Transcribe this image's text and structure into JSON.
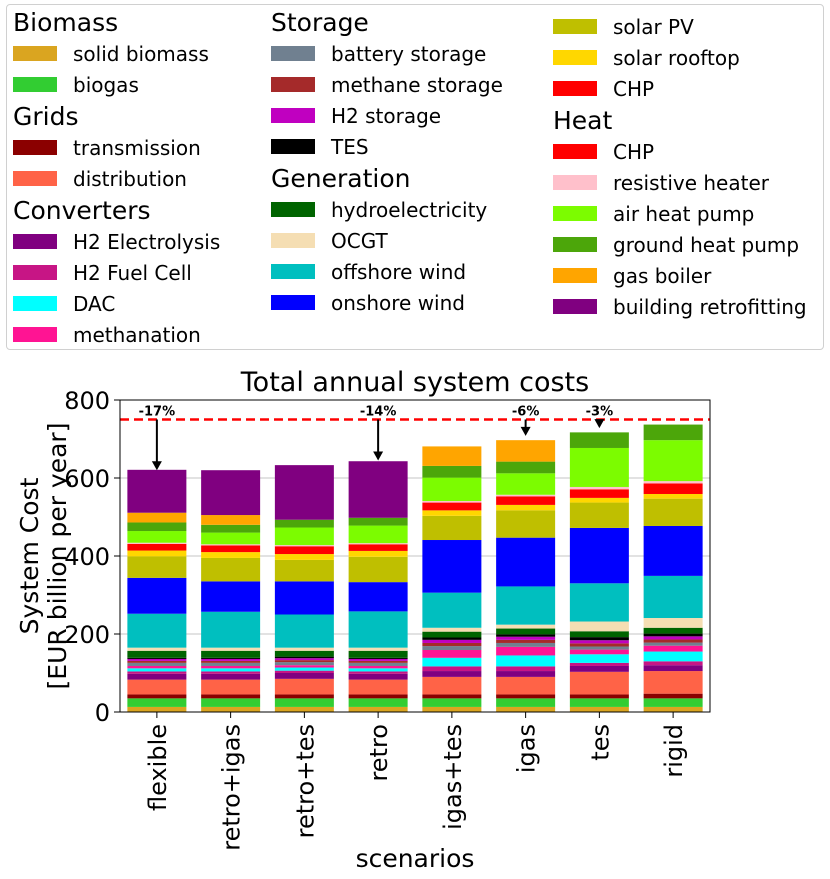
{
  "legend": {
    "columns": [
      [
        {
          "header": "Biomass",
          "items": [
            {
              "label": "solid biomass",
              "color": "#DAA520"
            },
            {
              "label": "biogas",
              "color": "#32CD32"
            }
          ]
        },
        {
          "header": "Grids",
          "items": [
            {
              "label": "transmission",
              "color": "#8B0000"
            },
            {
              "label": "distribution",
              "color": "#FF6347"
            }
          ]
        },
        {
          "header": "Converters",
          "items": [
            {
              "label": "H2 Electrolysis",
              "color": "#800080"
            },
            {
              "label": "H2 Fuel Cell",
              "color": "#C71585"
            },
            {
              "label": "DAC",
              "color": "#00FFFF"
            },
            {
              "label": "methanation",
              "color": "#FF1493"
            }
          ]
        }
      ],
      [
        {
          "header": "Storage",
          "items": [
            {
              "label": "battery storage",
              "color": "#708090"
            },
            {
              "label": "methane storage",
              "color": "#A52A2A"
            },
            {
              "label": "H2 storage",
              "color": "#C000C0"
            },
            {
              "label": "TES",
              "color": "#000000"
            }
          ]
        },
        {
          "header": "Generation",
          "items": [
            {
              "label": "hydroelectricity",
              "color": "#006400"
            },
            {
              "label": "OCGT",
              "color": "#F5DEB3"
            },
            {
              "label": "offshore wind",
              "color": "#00BFBF"
            },
            {
              "label": "onshore wind",
              "color": "#0000FF"
            }
          ]
        }
      ],
      [
        {
          "header": "",
          "items": [
            {
              "label": "solar PV",
              "color": "#BFBF00"
            },
            {
              "label": "solar rooftop",
              "color": "#FFD700"
            },
            {
              "label": "CHP",
              "color": "#FF0000"
            }
          ]
        },
        {
          "header": "Heat",
          "items": [
            {
              "label": "CHP",
              "color": "#FF0000"
            },
            {
              "label": "resistive heater",
              "color": "#FFC0CB"
            },
            {
              "label": "air heat pump",
              "color": "#7CFC00"
            },
            {
              "label": "ground heat pump",
              "color": "#4CA60A"
            },
            {
              "label": "gas boiler",
              "color": "#FFA500"
            },
            {
              "label": "building retrofitting",
              "color": "#800080"
            }
          ]
        }
      ]
    ]
  },
  "chart_data": {
    "type": "bar",
    "stacked": true,
    "title": "Total annual system costs",
    "xlabel": "scenarios",
    "ylabel_lines": [
      "System Cost",
      "[EUR billion per year]"
    ],
    "ylim": [
      0,
      800
    ],
    "yticks": [
      0,
      200,
      400,
      600,
      800
    ],
    "grid": "horizontal",
    "categories": [
      "flexible",
      "retro+igas",
      "retro+tes",
      "retro",
      "igas+tes",
      "igas",
      "tes",
      "rigid"
    ],
    "reference_line": {
      "value": 750,
      "style": "dashed",
      "color": "#FF0000"
    },
    "annotations": [
      {
        "category": "flexible",
        "text": "-17%",
        "from": 750,
        "to": 620
      },
      {
        "category": "retro",
        "text": "-14%",
        "from": 750,
        "to": 645
      },
      {
        "category": "igas",
        "text": "-6%",
        "from": 750,
        "to": 708
      },
      {
        "category": "tes",
        "text": "-3%",
        "from": 750,
        "to": 728
      }
    ],
    "series": [
      {
        "name": "solid biomass",
        "color": "#DAA520",
        "values": [
          13,
          13,
          13,
          13,
          13,
          13,
          13,
          13
        ]
      },
      {
        "name": "biogas",
        "color": "#32CD32",
        "values": [
          22,
          22,
          22,
          22,
          22,
          22,
          22,
          22
        ]
      },
      {
        "name": "transmission",
        "color": "#8B0000",
        "values": [
          10,
          10,
          10,
          10,
          10,
          10,
          10,
          12
        ]
      },
      {
        "name": "distribution",
        "color": "#FF6347",
        "values": [
          38,
          38,
          40,
          38,
          45,
          45,
          58,
          58
        ]
      },
      {
        "name": "H2 Electrolysis",
        "color": "#800080",
        "values": [
          15,
          15,
          15,
          15,
          15,
          15,
          15,
          15
        ]
      },
      {
        "name": "H2 Fuel Cell",
        "color": "#C71585",
        "values": [
          6,
          6,
          6,
          6,
          12,
          12,
          8,
          10
        ]
      },
      {
        "name": "DAC",
        "color": "#00FFFF",
        "values": [
          8,
          8,
          8,
          8,
          22,
          28,
          22,
          25
        ]
      },
      {
        "name": "methanation",
        "color": "#FF1493",
        "values": [
          6,
          6,
          6,
          6,
          20,
          22,
          12,
          15
        ]
      },
      {
        "name": "battery storage",
        "color": "#708090",
        "values": [
          8,
          8,
          8,
          8,
          10,
          10,
          8,
          8
        ]
      },
      {
        "name": "methane storage",
        "color": "#A52A2A",
        "values": [
          5,
          5,
          5,
          5,
          8,
          8,
          8,
          8
        ]
      },
      {
        "name": "H2 storage",
        "color": "#C000C0",
        "values": [
          5,
          5,
          5,
          5,
          8,
          8,
          8,
          8
        ]
      },
      {
        "name": "TES",
        "color": "#000000",
        "values": [
          3,
          3,
          4,
          3,
          6,
          6,
          8,
          7
        ]
      },
      {
        "name": "hydroelectricity",
        "color": "#006400",
        "values": [
          18,
          18,
          15,
          18,
          15,
          15,
          15,
          15
        ]
      },
      {
        "name": "OCGT",
        "color": "#F5DEB3",
        "values": [
          8,
          8,
          8,
          8,
          10,
          10,
          25,
          25
        ]
      },
      {
        "name": "offshore wind",
        "color": "#00BFBF",
        "values": [
          87,
          92,
          85,
          93,
          90,
          98,
          98,
          108
        ]
      },
      {
        "name": "onshore wind",
        "color": "#0000FF",
        "values": [
          92,
          78,
          85,
          75,
          135,
          125,
          142,
          128
        ]
      },
      {
        "name": "solar PV",
        "color": "#BFBF00",
        "values": [
          55,
          60,
          55,
          65,
          62,
          70,
          65,
          70
        ]
      },
      {
        "name": "solar rooftop",
        "color": "#FFD700",
        "values": [
          15,
          15,
          15,
          15,
          14,
          14,
          12,
          12
        ]
      },
      {
        "name": "CHP",
        "color": "#FF0000",
        "values": [
          17,
          17,
          20,
          17,
          20,
          22,
          22,
          27
        ]
      },
      {
        "name": "resistive heater",
        "color": "#FFC0CB",
        "values": [
          3,
          3,
          3,
          3,
          4,
          4,
          6,
          6
        ]
      },
      {
        "name": "air heat pump",
        "color": "#7CFC00",
        "values": [
          30,
          30,
          45,
          45,
          60,
          55,
          100,
          105
        ]
      },
      {
        "name": "ground heat pump",
        "color": "#4CA60A",
        "values": [
          22,
          20,
          20,
          20,
          30,
          30,
          40,
          40
        ]
      },
      {
        "name": "gas boiler",
        "color": "#FFA500",
        "values": [
          25,
          25,
          0,
          0,
          50,
          55,
          0,
          0
        ]
      },
      {
        "name": "building retrofitting",
        "color": "#800080",
        "values": [
          110,
          115,
          140,
          145,
          0,
          0,
          0,
          0
        ]
      }
    ]
  }
}
